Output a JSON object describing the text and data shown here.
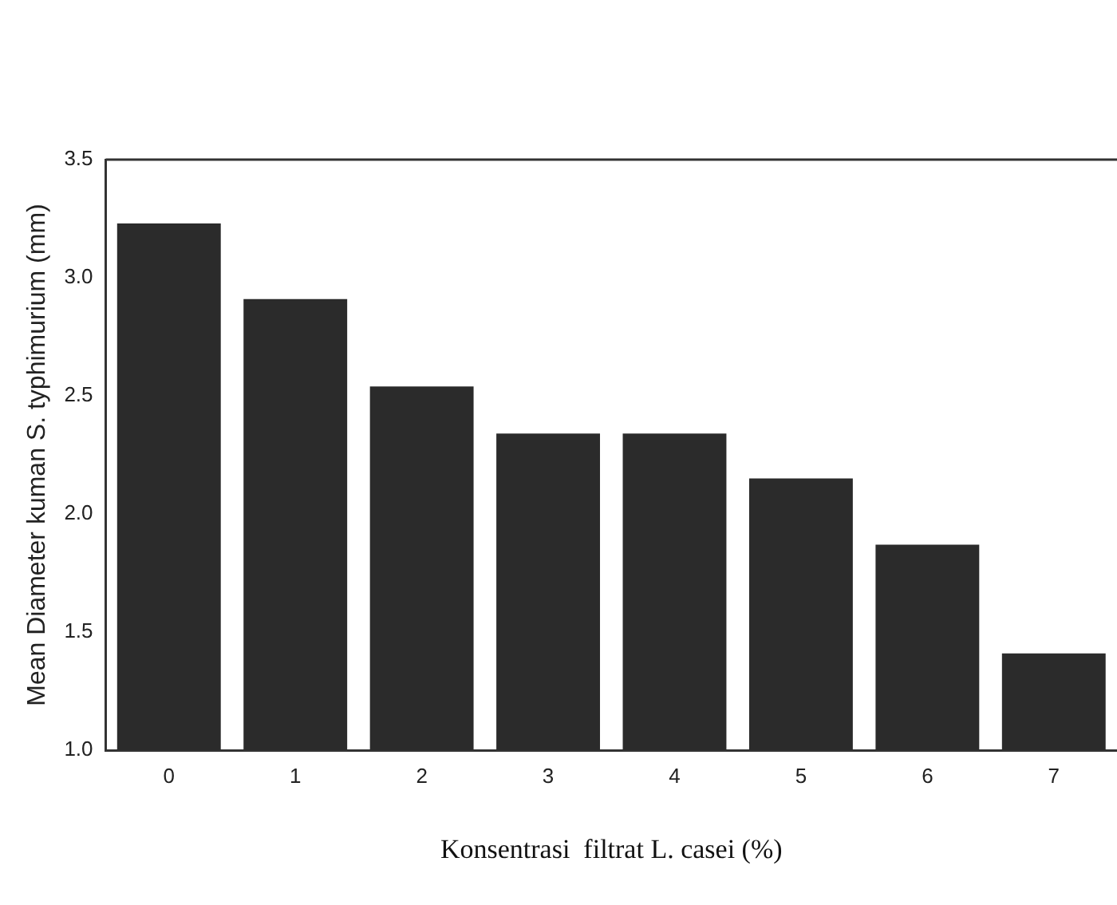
{
  "chart_data": {
    "type": "bar",
    "xlabel": "Konsentrasi  filtrat L. casei (%)",
    "ylabel": "Mean Diameter kuman S. typhimurium (mm)",
    "categories": [
      "0",
      "1",
      "2",
      "3",
      "4",
      "5",
      "6",
      "7"
    ],
    "values": [
      3.23,
      2.91,
      2.54,
      2.34,
      2.34,
      2.15,
      1.87,
      1.41
    ],
    "color": "#2b2b2b",
    "ylim": [
      1.0,
      3.5
    ],
    "yticks": [
      {
        "value": 1.0,
        "label": "1.0"
      },
      {
        "value": 1.5,
        "label": "1.5"
      },
      {
        "value": 2.0,
        "label": "2.0"
      },
      {
        "value": 2.5,
        "label": "2.5"
      },
      {
        "value": 3.0,
        "label": "3.0"
      },
      {
        "value": 3.5,
        "label": "3.5"
      }
    ],
    "grid": false,
    "legend": false
  }
}
